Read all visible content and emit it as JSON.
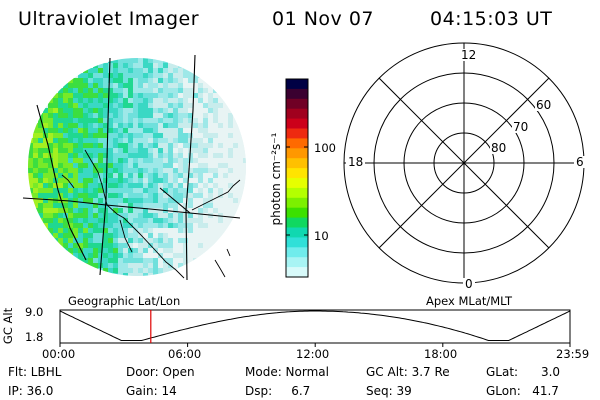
{
  "header": {
    "instrument": "Ultraviolet Imager",
    "date": "01 Nov 07",
    "time": "04:15:03 UT"
  },
  "colorbar": {
    "label": "photon cm⁻²s⁻¹",
    "ticks": [
      "100",
      "10"
    ],
    "colors": [
      "#000044",
      "#3a0030",
      "#700025",
      "#a0001e",
      "#cc001a",
      "#ee2a10",
      "#ff6a00",
      "#ff9800",
      "#ffc000",
      "#ffe400",
      "#e6ff00",
      "#b4ff00",
      "#7cf000",
      "#3ce000",
      "#10d860",
      "#10d8b0",
      "#30e0d8",
      "#70ecec",
      "#a8f4f4",
      "#d8fafa"
    ]
  },
  "polar": {
    "top_label": "12",
    "bottom_label": "0",
    "left_label": "18",
    "right_label": "6",
    "ring_labels": [
      "60",
      "70",
      "80"
    ]
  },
  "altitude_plot": {
    "left_title": "Geographic Lat/Lon",
    "right_title": "Apex MLat/MLT",
    "ylabel": "GC Alt",
    "y_ticks": [
      "9.0",
      "1.8"
    ],
    "x_ticks": [
      "00:00",
      "06:00",
      "12:00",
      "18:00",
      "23:59"
    ]
  },
  "status": {
    "flt": "Flt: LBHL",
    "ip": "IP: 36.0",
    "door": "Door: Open",
    "gain": "Gain: 14",
    "mode": "Mode: Normal",
    "dsp": "Dsp:     6.7",
    "gcalt": "GC Alt: 3.7 Re",
    "seq": "Seq: 39",
    "glat": "GLat:      3.0",
    "glon": "GLon:   41.7"
  }
}
